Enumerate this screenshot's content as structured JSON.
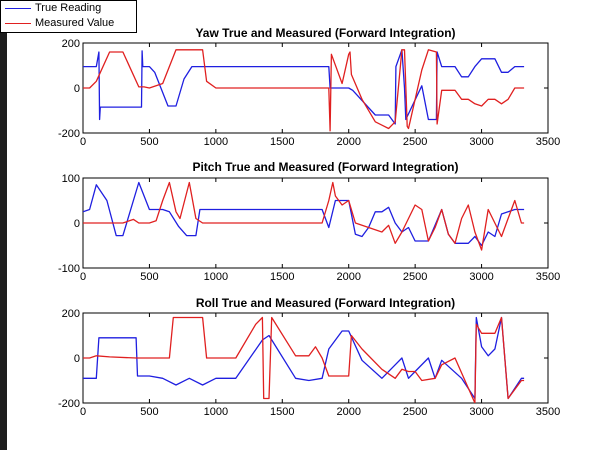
{
  "legend": {
    "placement": "top-left",
    "entries": [
      {
        "label": "True Reading",
        "color": "#1f1fe0"
      },
      {
        "label": "Measured Value",
        "color": "#e02020"
      }
    ]
  },
  "chart_data": [
    {
      "type": "line",
      "title": "Yaw True and Measured (Forward Integration)",
      "xlim": [
        0,
        3500
      ],
      "ylim": [
        -200,
        200
      ],
      "xticks": [
        0,
        500,
        1000,
        1500,
        2000,
        2500,
        3000,
        3500
      ],
      "yticks": [
        -200,
        0,
        200
      ],
      "grid": false,
      "series": [
        {
          "name": "True Reading",
          "color": "#1f1fe0",
          "points": [
            [
              0,
              95
            ],
            [
              100,
              95
            ],
            [
              120,
              160
            ],
            [
              125,
              -140
            ],
            [
              130,
              -85
            ],
            [
              400,
              -85
            ],
            [
              440,
              -85
            ],
            [
              445,
              165
            ],
            [
              450,
              95
            ],
            [
              500,
              95
            ],
            [
              540,
              70
            ],
            [
              640,
              -80
            ],
            [
              700,
              -80
            ],
            [
              760,
              40
            ],
            [
              820,
              95
            ],
            [
              1850,
              95
            ],
            [
              1860,
              0
            ],
            [
              1900,
              0
            ],
            [
              1950,
              0
            ],
            [
              2000,
              0
            ],
            [
              2030,
              -10
            ],
            [
              2200,
              -120
            ],
            [
              2300,
              -120
            ],
            [
              2350,
              -160
            ],
            [
              2355,
              95
            ],
            [
              2400,
              170
            ],
            [
              2420,
              0
            ],
            [
              2430,
              -140
            ],
            [
              2550,
              10
            ],
            [
              2600,
              -140
            ],
            [
              2660,
              -140
            ],
            [
              2665,
              160
            ],
            [
              2700,
              95
            ],
            [
              2800,
              95
            ],
            [
              2850,
              50
            ],
            [
              2900,
              50
            ],
            [
              2950,
              95
            ],
            [
              3000,
              130
            ],
            [
              3100,
              130
            ],
            [
              3150,
              70
            ],
            [
              3200,
              70
            ],
            [
              3250,
              95
            ],
            [
              3320,
              95
            ]
          ]
        },
        {
          "name": "Measured Value",
          "color": "#e02020",
          "points": [
            [
              0,
              0
            ],
            [
              50,
              0
            ],
            [
              100,
              30
            ],
            [
              200,
              160
            ],
            [
              300,
              160
            ],
            [
              420,
              5
            ],
            [
              460,
              5
            ],
            [
              500,
              0
            ],
            [
              600,
              20
            ],
            [
              700,
              170
            ],
            [
              900,
              170
            ],
            [
              930,
              30
            ],
            [
              1000,
              0
            ],
            [
              1850,
              0
            ],
            [
              1860,
              -190
            ],
            [
              1870,
              150
            ],
            [
              1950,
              20
            ],
            [
              2000,
              150
            ],
            [
              2010,
              160
            ],
            [
              2020,
              60
            ],
            [
              2100,
              -50
            ],
            [
              2200,
              -150
            ],
            [
              2300,
              -180
            ],
            [
              2350,
              -150
            ],
            [
              2400,
              170
            ],
            [
              2420,
              170
            ],
            [
              2440,
              -170
            ],
            [
              2450,
              -180
            ],
            [
              2550,
              80
            ],
            [
              2600,
              170
            ],
            [
              2660,
              160
            ],
            [
              2665,
              -160
            ],
            [
              2700,
              -10
            ],
            [
              2800,
              -10
            ],
            [
              2850,
              -50
            ],
            [
              2900,
              -50
            ],
            [
              2950,
              -70
            ],
            [
              3000,
              -80
            ],
            [
              3050,
              -50
            ],
            [
              3100,
              -50
            ],
            [
              3150,
              -70
            ],
            [
              3200,
              -50
            ],
            [
              3250,
              0
            ],
            [
              3320,
              0
            ]
          ]
        }
      ]
    },
    {
      "type": "line",
      "title": "Pitch True and Measured (Forward Integration)",
      "xlim": [
        0,
        3500
      ],
      "ylim": [
        -100,
        100
      ],
      "xticks": [
        0,
        500,
        1000,
        1500,
        2000,
        2500,
        3000,
        3500
      ],
      "yticks": [
        -100,
        0,
        100
      ],
      "grid": false,
      "series": [
        {
          "name": "True Reading",
          "color": "#1f1fe0",
          "points": [
            [
              0,
              25
            ],
            [
              50,
              30
            ],
            [
              100,
              85
            ],
            [
              180,
              50
            ],
            [
              250,
              -28
            ],
            [
              300,
              -28
            ],
            [
              420,
              90
            ],
            [
              500,
              30
            ],
            [
              600,
              30
            ],
            [
              650,
              25
            ],
            [
              720,
              -8
            ],
            [
              780,
              -28
            ],
            [
              850,
              -28
            ],
            [
              880,
              30
            ],
            [
              1000,
              30
            ],
            [
              1800,
              30
            ],
            [
              1850,
              -10
            ],
            [
              1900,
              50
            ],
            [
              2000,
              50
            ],
            [
              2050,
              -25
            ],
            [
              2100,
              -30
            ],
            [
              2150,
              -10
            ],
            [
              2200,
              25
            ],
            [
              2250,
              25
            ],
            [
              2300,
              35
            ],
            [
              2350,
              0
            ],
            [
              2400,
              -20
            ],
            [
              2450,
              -10
            ],
            [
              2500,
              -40
            ],
            [
              2600,
              -40
            ],
            [
              2700,
              30
            ],
            [
              2750,
              -25
            ],
            [
              2800,
              -45
            ],
            [
              2900,
              -45
            ],
            [
              2950,
              -30
            ],
            [
              3000,
              -50
            ],
            [
              3050,
              -20
            ],
            [
              3100,
              -30
            ],
            [
              3150,
              20
            ],
            [
              3250,
              30
            ],
            [
              3320,
              30
            ]
          ]
        },
        {
          "name": "Measured Value",
          "color": "#e02020",
          "points": [
            [
              0,
              0
            ],
            [
              100,
              0
            ],
            [
              200,
              0
            ],
            [
              300,
              0
            ],
            [
              380,
              8
            ],
            [
              420,
              0
            ],
            [
              500,
              0
            ],
            [
              550,
              5
            ],
            [
              600,
              50
            ],
            [
              650,
              90
            ],
            [
              700,
              25
            ],
            [
              730,
              10
            ],
            [
              800,
              90
            ],
            [
              850,
              10
            ],
            [
              900,
              0
            ],
            [
              1800,
              0
            ],
            [
              1850,
              50
            ],
            [
              1880,
              90
            ],
            [
              1900,
              60
            ],
            [
              1950,
              40
            ],
            [
              2000,
              50
            ],
            [
              2050,
              0
            ],
            [
              2150,
              -10
            ],
            [
              2250,
              -20
            ],
            [
              2300,
              -5
            ],
            [
              2350,
              -45
            ],
            [
              2400,
              -20
            ],
            [
              2500,
              40
            ],
            [
              2550,
              30
            ],
            [
              2600,
              -40
            ],
            [
              2650,
              -10
            ],
            [
              2700,
              30
            ],
            [
              2750,
              -25
            ],
            [
              2800,
              -45
            ],
            [
              2850,
              10
            ],
            [
              2900,
              40
            ],
            [
              2950,
              -20
            ],
            [
              3000,
              -60
            ],
            [
              3050,
              30
            ],
            [
              3150,
              -30
            ],
            [
              3200,
              10
            ],
            [
              3250,
              50
            ],
            [
              3300,
              0
            ],
            [
              3320,
              0
            ]
          ]
        }
      ]
    },
    {
      "type": "line",
      "title": "Roll True and Measured (Forward Integration)",
      "xlim": [
        0,
        3500
      ],
      "ylim": [
        -200,
        200
      ],
      "xticks": [
        0,
        500,
        1000,
        1500,
        2000,
        2500,
        3000,
        3500
      ],
      "yticks": [
        -200,
        0,
        200
      ],
      "grid": false,
      "series": [
        {
          "name": "True Reading",
          "color": "#1f1fe0",
          "points": [
            [
              0,
              -90
            ],
            [
              100,
              -90
            ],
            [
              120,
              90
            ],
            [
              400,
              90
            ],
            [
              410,
              -80
            ],
            [
              500,
              -80
            ],
            [
              600,
              -90
            ],
            [
              700,
              -120
            ],
            [
              800,
              -90
            ],
            [
              900,
              -120
            ],
            [
              1000,
              -90
            ],
            [
              1150,
              -90
            ],
            [
              1350,
              80
            ],
            [
              1400,
              100
            ],
            [
              1600,
              -90
            ],
            [
              1700,
              -100
            ],
            [
              1800,
              -90
            ],
            [
              1850,
              40
            ],
            [
              1950,
              120
            ],
            [
              2000,
              120
            ],
            [
              2100,
              -10
            ],
            [
              2250,
              -90
            ],
            [
              2350,
              -30
            ],
            [
              2400,
              0
            ],
            [
              2450,
              -90
            ],
            [
              2500,
              -60
            ],
            [
              2600,
              0
            ],
            [
              2650,
              -90
            ],
            [
              2700,
              -10
            ],
            [
              2850,
              -90
            ],
            [
              2950,
              -180
            ],
            [
              2960,
              180
            ],
            [
              3000,
              50
            ],
            [
              3050,
              10
            ],
            [
              3100,
              40
            ],
            [
              3150,
              180
            ],
            [
              3200,
              -180
            ],
            [
              3300,
              -90
            ],
            [
              3320,
              -90
            ]
          ]
        },
        {
          "name": "Measured Value",
          "color": "#e02020",
          "points": [
            [
              0,
              0
            ],
            [
              50,
              0
            ],
            [
              100,
              10
            ],
            [
              200,
              5
            ],
            [
              400,
              0
            ],
            [
              650,
              0
            ],
            [
              680,
              180
            ],
            [
              900,
              180
            ],
            [
              930,
              0
            ],
            [
              1000,
              0
            ],
            [
              1150,
              0
            ],
            [
              1300,
              150
            ],
            [
              1350,
              180
            ],
            [
              1360,
              -180
            ],
            [
              1400,
              -180
            ],
            [
              1420,
              180
            ],
            [
              1600,
              10
            ],
            [
              1700,
              10
            ],
            [
              1750,
              50
            ],
            [
              1800,
              0
            ],
            [
              1850,
              -80
            ],
            [
              1950,
              -80
            ],
            [
              2000,
              -80
            ],
            [
              2020,
              100
            ],
            [
              2100,
              40
            ],
            [
              2250,
              -50
            ],
            [
              2350,
              -90
            ],
            [
              2400,
              -50
            ],
            [
              2450,
              -60
            ],
            [
              2500,
              -60
            ],
            [
              2550,
              -100
            ],
            [
              2650,
              -90
            ],
            [
              2700,
              -30
            ],
            [
              2800,
              0
            ],
            [
              2950,
              -200
            ],
            [
              2960,
              150
            ],
            [
              3000,
              110
            ],
            [
              3100,
              110
            ],
            [
              3150,
              180
            ],
            [
              3200,
              -180
            ],
            [
              3300,
              -100
            ],
            [
              3320,
              -100
            ]
          ]
        }
      ]
    }
  ]
}
